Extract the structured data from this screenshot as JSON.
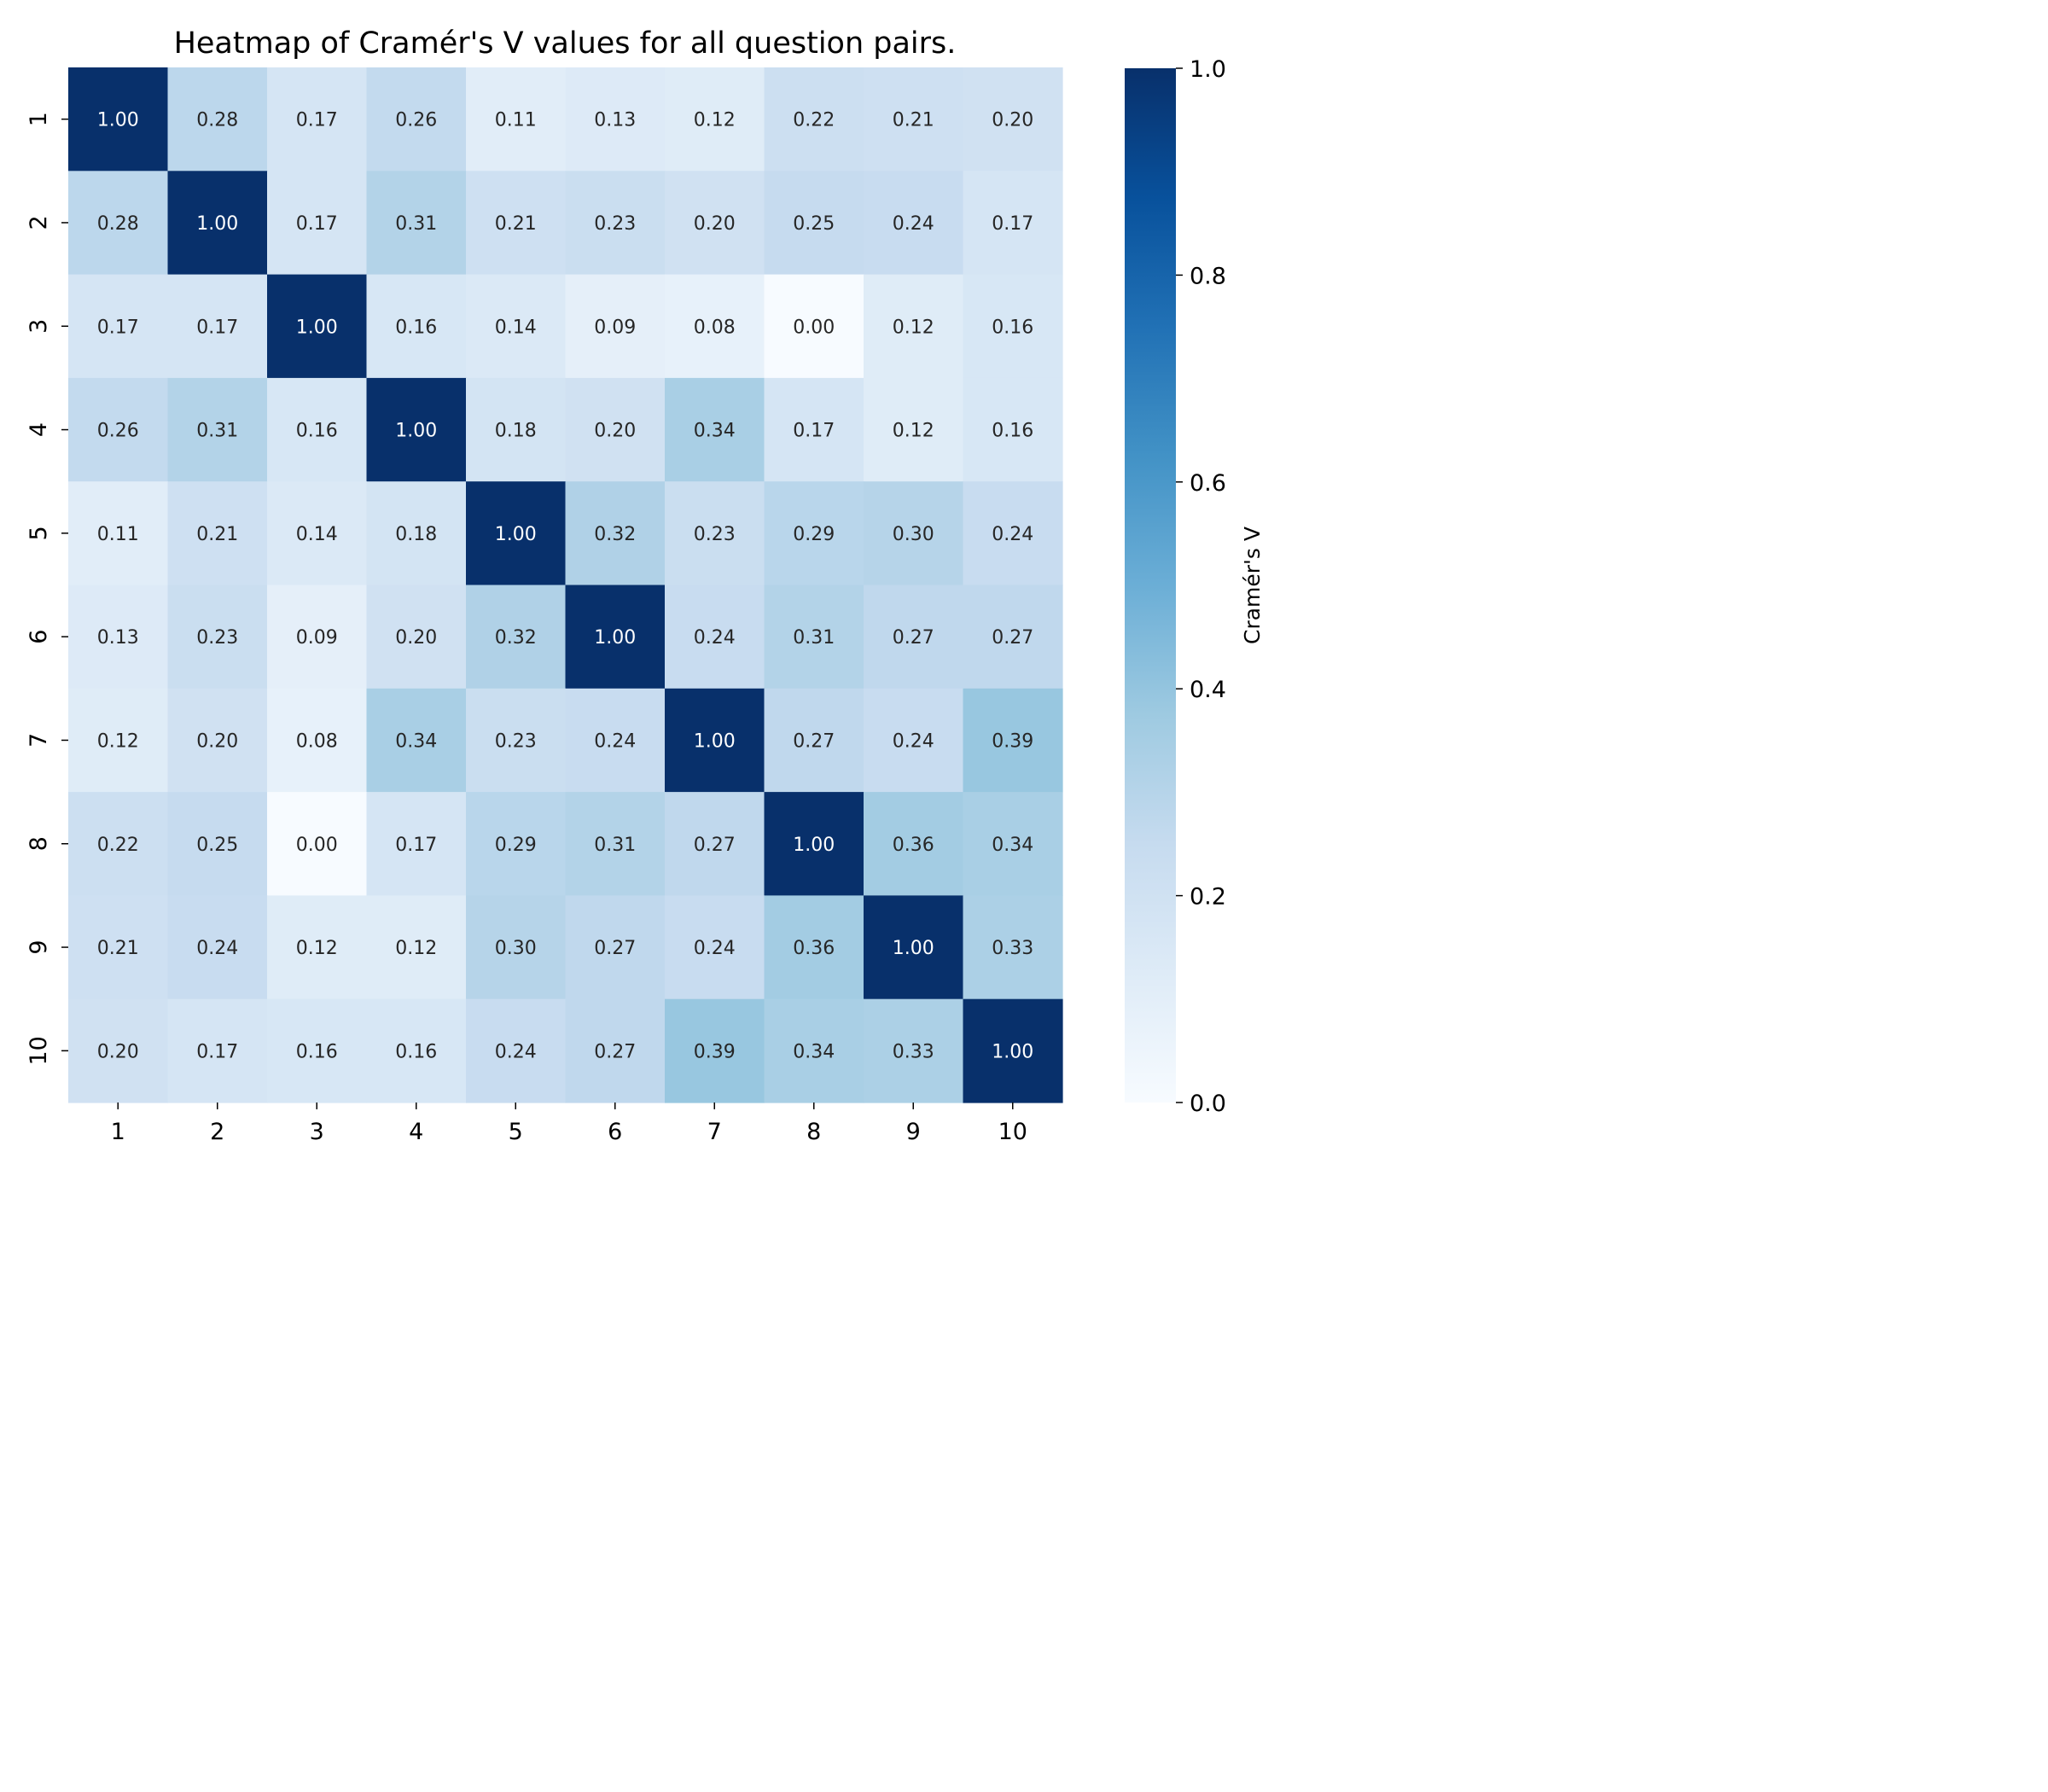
{
  "chart_data": {
    "type": "heatmap",
    "title": "Heatmap of Cramér's V values for all question pairs.",
    "xlabel": "",
    "ylabel": "",
    "x_categories": [
      "1",
      "2",
      "3",
      "4",
      "5",
      "6",
      "7",
      "8",
      "9",
      "10"
    ],
    "y_categories": [
      "1",
      "2",
      "3",
      "4",
      "5",
      "6",
      "7",
      "8",
      "9",
      "10"
    ],
    "values": [
      [
        1.0,
        0.28,
        0.17,
        0.26,
        0.11,
        0.13,
        0.12,
        0.22,
        0.21,
        0.2
      ],
      [
        0.28,
        1.0,
        0.17,
        0.31,
        0.21,
        0.23,
        0.2,
        0.25,
        0.24,
        0.17
      ],
      [
        0.17,
        0.17,
        1.0,
        0.16,
        0.14,
        0.09,
        0.08,
        0.0,
        0.12,
        0.16
      ],
      [
        0.26,
        0.31,
        0.16,
        1.0,
        0.18,
        0.2,
        0.34,
        0.17,
        0.12,
        0.16
      ],
      [
        0.11,
        0.21,
        0.14,
        0.18,
        1.0,
        0.32,
        0.23,
        0.29,
        0.3,
        0.24
      ],
      [
        0.13,
        0.23,
        0.09,
        0.2,
        0.32,
        1.0,
        0.24,
        0.31,
        0.27,
        0.27
      ],
      [
        0.12,
        0.2,
        0.08,
        0.34,
        0.23,
        0.24,
        1.0,
        0.27,
        0.24,
        0.39
      ],
      [
        0.22,
        0.25,
        0.0,
        0.17,
        0.29,
        0.31,
        0.27,
        1.0,
        0.36,
        0.34
      ],
      [
        0.21,
        0.24,
        0.12,
        0.12,
        0.3,
        0.27,
        0.24,
        0.36,
        1.0,
        0.33
      ],
      [
        0.2,
        0.17,
        0.16,
        0.16,
        0.24,
        0.27,
        0.39,
        0.34,
        0.33,
        1.0
      ]
    ],
    "value_format": "0.00",
    "colormap": "Blues",
    "color_range": [
      0.0,
      1.0
    ],
    "colorbar": {
      "label": "Cramér's V",
      "ticks": [
        "0.0",
        "0.2",
        "0.4",
        "0.6",
        "0.8",
        "1.0"
      ],
      "tick_values": [
        0.0,
        0.2,
        0.4,
        0.6,
        0.8,
        1.0
      ],
      "placement": "right"
    },
    "grid": false
  }
}
